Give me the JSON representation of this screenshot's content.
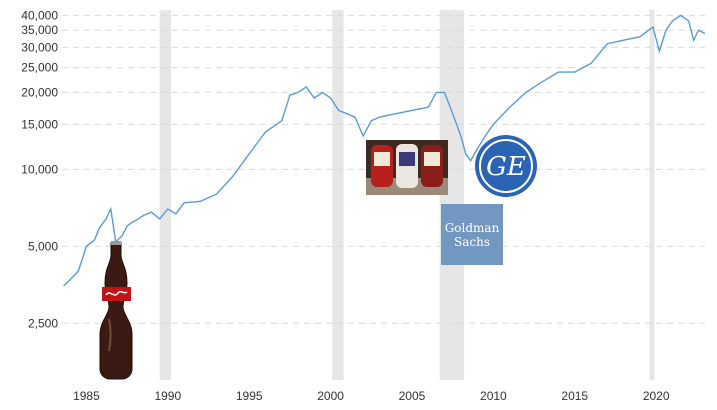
{
  "chart_data": {
    "type": "line",
    "title": "",
    "xlabel": "",
    "ylabel": "",
    "y_scale": "log",
    "xlim": [
      1983.5,
      2023.0
    ],
    "ylim": [
      1500,
      42000
    ],
    "grid": "horizontal dashed",
    "y_ticks": [
      2500,
      5000,
      10000,
      15000,
      20000,
      25000,
      30000,
      35000,
      40000
    ],
    "y_tick_labels": [
      "2,500",
      "5,000",
      "10,000",
      "15,000",
      "20,000",
      "25,000",
      "30,000",
      "35,000",
      "40,000"
    ],
    "x_ticks": [
      1985,
      1990,
      1995,
      2000,
      2005,
      2010,
      2015,
      2020
    ],
    "x_tick_labels": [
      "1985",
      "1990",
      "1995",
      "2000",
      "2005",
      "2010",
      "2015",
      "2020"
    ],
    "recession_bands": [
      [
        1989.5,
        1990.2
      ],
      [
        2000.1,
        2000.8
      ],
      [
        2006.7,
        2008.2
      ],
      [
        2019.6,
        2019.9
      ]
    ],
    "line_color": "#5b9bd5",
    "band_color": "#e6e6e6",
    "series": [
      {
        "x": [
          1983.6,
          1984.0,
          1984.5,
          1985.0,
          1985.5,
          1985.8,
          1986.2,
          1986.5,
          1986.8,
          1987.2,
          1987.5,
          1987.8,
          1988.2,
          1988.5,
          1989.0,
          1989.5,
          1990.0,
          1990.5,
          1991.0,
          1992.0,
          1993.0,
          1994.0,
          1995.0,
          1996.0,
          1997.0,
          1997.5,
          1998.0,
          1998.5,
          1999.0,
          1999.5,
          2000.0,
          2000.5,
          2001.0,
          2001.5,
          2002.0,
          2002.5,
          2003.0,
          2004.0,
          2005.0,
          2006.0,
          2006.5,
          2007.0,
          2007.5,
          2008.0,
          2008.3,
          2008.6,
          2009.0,
          2009.5,
          2010.0,
          2011.0,
          2012.0,
          2013.0,
          2014.0,
          2015.0,
          2016.0,
          2017.0,
          2018.0,
          2019.0,
          2019.8,
          2020.2,
          2020.6,
          2021.0,
          2021.5,
          2022.0,
          2022.3,
          2022.6,
          2023.0
        ],
        "y": [
          3500,
          3700,
          4000,
          5000,
          5300,
          5900,
          6400,
          7000,
          5200,
          5500,
          6000,
          6200,
          6400,
          6600,
          6800,
          6400,
          7000,
          6700,
          7400,
          7500,
          8000,
          9400,
          11500,
          14000,
          15500,
          19500,
          20000,
          21000,
          19000,
          20000,
          19000,
          17000,
          16500,
          16000,
          13500,
          15500,
          16000,
          16500,
          17000,
          17500,
          20000,
          20000,
          16500,
          13500,
          11500,
          10800,
          12000,
          13500,
          15000,
          17500,
          20000,
          22000,
          24000,
          24000,
          26000,
          31000,
          32000,
          33000,
          36000,
          29000,
          35000,
          38000,
          40000,
          38000,
          32000,
          35000,
          34000
        ]
      }
    ],
    "images": [
      {
        "name": "coca-cola-bottle-logo"
      },
      {
        "name": "heinz-bottles-logo"
      },
      {
        "name": "general-electric-logo",
        "text": "GE"
      },
      {
        "name": "goldman-sachs-logo",
        "text": "Goldman Sachs"
      }
    ]
  }
}
